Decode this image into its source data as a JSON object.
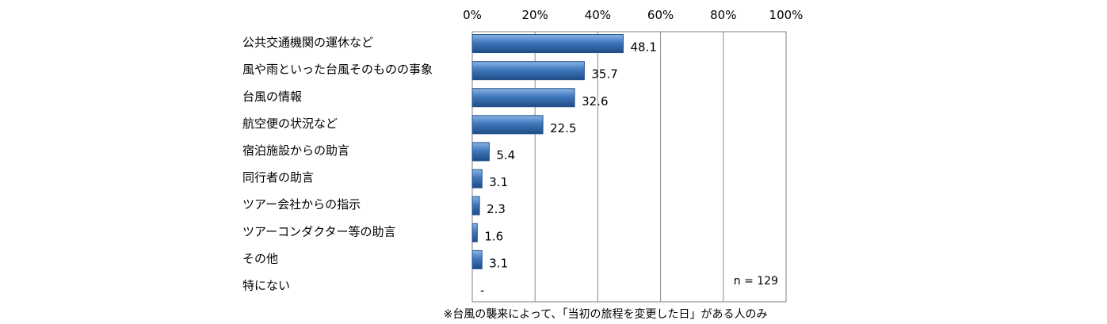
{
  "chart_data": {
    "type": "bar",
    "orientation": "horizontal",
    "categories": [
      "公共交通機関の運休など",
      "風や雨といった台風そのものの事象",
      "台風の情報",
      "航空便の状況など",
      "宿泊施設からの助言",
      "同行者の助言",
      "ツアー会社からの指示",
      "ツアーコンダクター等の助言",
      "その他",
      "特にない"
    ],
    "values": [
      48.1,
      35.7,
      32.6,
      22.5,
      5.4,
      3.1,
      2.3,
      1.6,
      3.1,
      0
    ],
    "value_labels": [
      "48.1",
      "35.7",
      "32.6",
      "22.5",
      "5.4",
      "3.1",
      "2.3",
      "1.6",
      "3.1",
      "-"
    ],
    "xlim": [
      0,
      100
    ],
    "xticks": [
      "0%",
      "20%",
      "40%",
      "60%",
      "80%",
      "100%"
    ],
    "grid": true,
    "sample_size": "n = 129",
    "footnote": "※台風の襲来によって、「当初の旅程を変更した日」がある人のみ",
    "bar_color": "#3f78bd"
  }
}
